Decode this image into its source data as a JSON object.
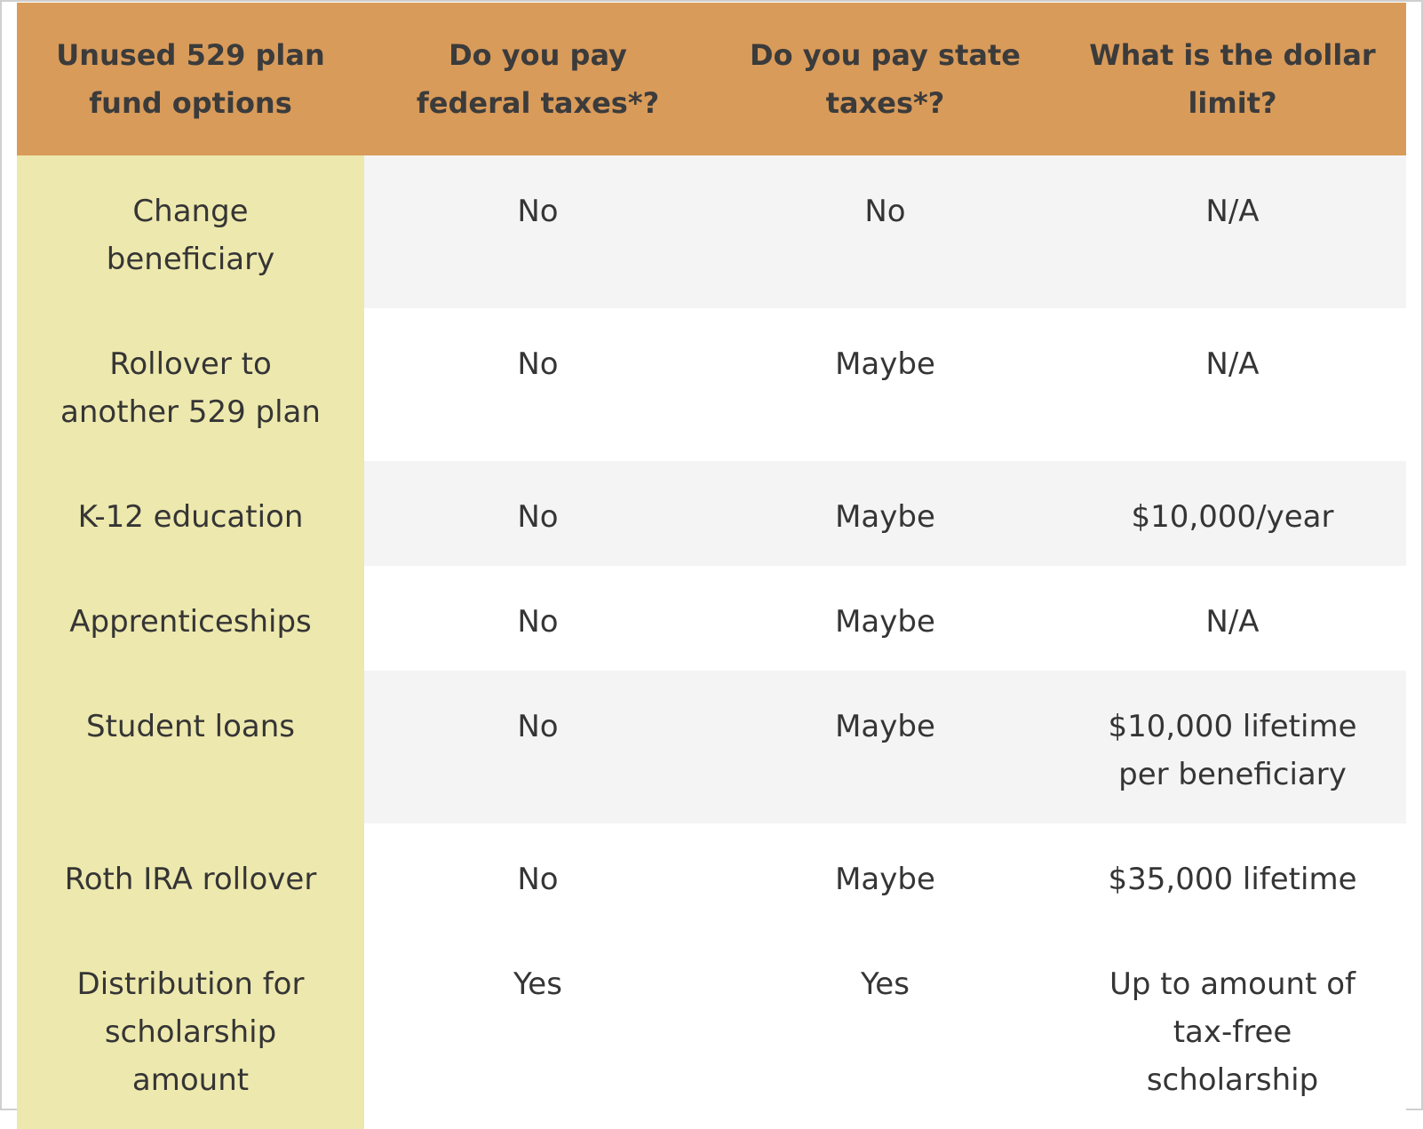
{
  "table": {
    "headers": [
      [
        "Unused 529 plan",
        "fund options"
      ],
      [
        "Do you pay",
        "federal taxes*?"
      ],
      [
        "Do you pay state",
        "taxes*?"
      ],
      [
        "What is the dollar",
        "limit?"
      ]
    ],
    "rows": [
      {
        "option": [
          "Change",
          "beneficiary"
        ],
        "federal": "No",
        "state": "No",
        "limit": [
          "N/A"
        ]
      },
      {
        "option": [
          "Rollover to",
          "another 529 plan"
        ],
        "federal": "No",
        "state": "Maybe",
        "limit": [
          "N/A"
        ]
      },
      {
        "option": [
          "K-12 education"
        ],
        "federal": "No",
        "state": "Maybe",
        "limit": [
          "$10,000/year"
        ]
      },
      {
        "option": [
          "Apprenticeships"
        ],
        "federal": "No",
        "state": "Maybe",
        "limit": [
          "N/A"
        ]
      },
      {
        "option": [
          "Student loans"
        ],
        "federal": "No",
        "state": "Maybe",
        "limit": [
          "$10,000 lifetime",
          "per beneficiary"
        ]
      },
      {
        "option": [
          "Roth IRA rollover"
        ],
        "federal": "No",
        "state": "Maybe",
        "limit": [
          "$35,000 lifetime"
        ]
      },
      {
        "option": [
          "Distribution for",
          "scholarship",
          "amount"
        ],
        "federal": "Yes",
        "state": "Yes",
        "limit": [
          "Up to amount of",
          "tax-free",
          "scholarship"
        ]
      }
    ]
  },
  "colors": {
    "header_bg": "#d99b5a",
    "first_column_bg": "#ede8ad",
    "shaded_row_bg": "#f4f4f4",
    "text": "#353535"
  }
}
